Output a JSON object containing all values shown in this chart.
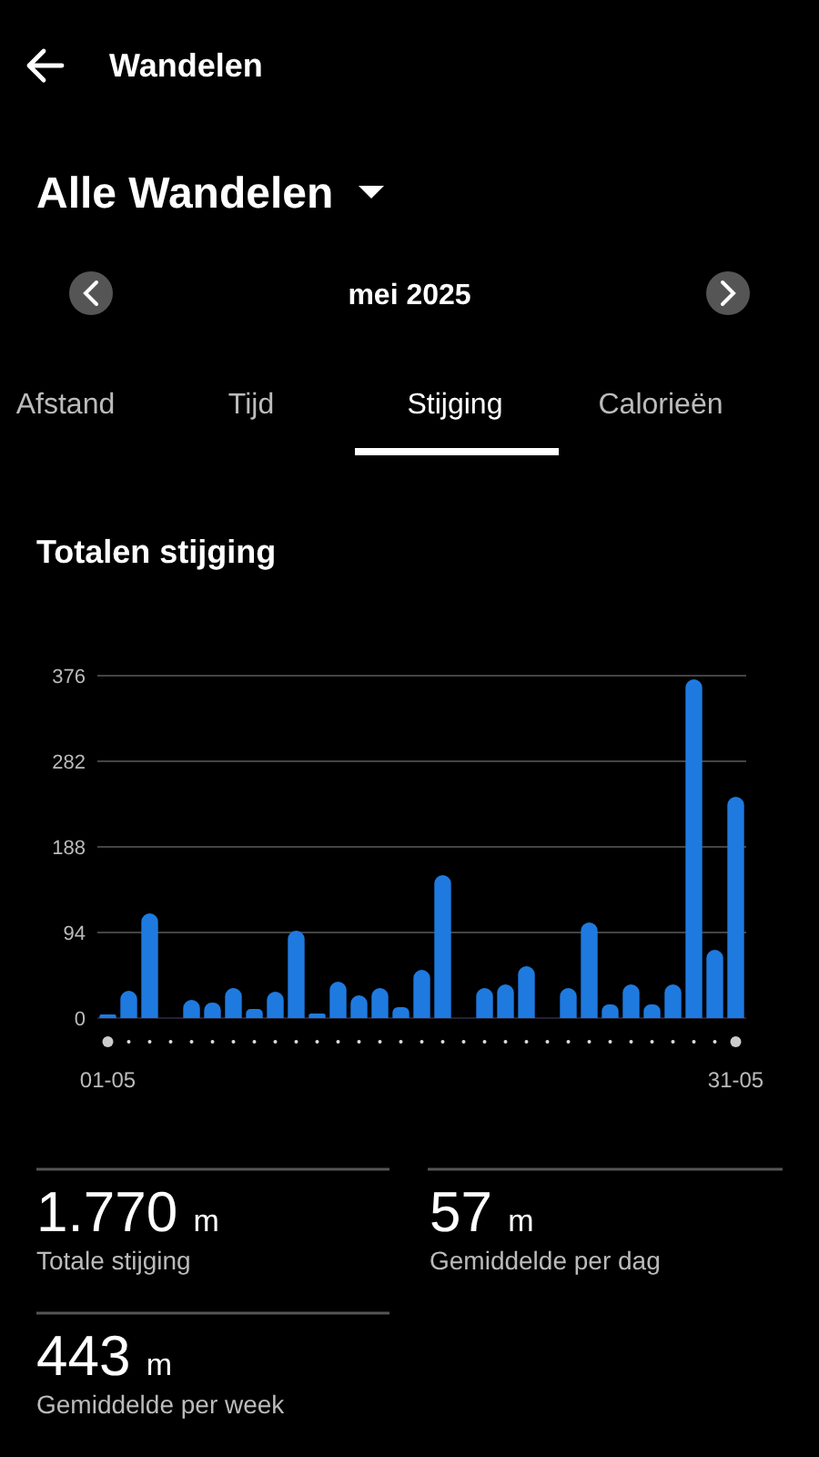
{
  "chart_data": {
    "type": "bar",
    "title": "Totalen stijging",
    "subtitle": "mei 2025",
    "annotations": [
      "Wandelen",
      "Alle Wandelen",
      "Afstand",
      "Tijd",
      "Stijging",
      "Calorieën",
      "1.770 m",
      "Totale stijging",
      "57 m",
      "Gemiddelde per dag",
      "443 m",
      "Gemiddelde per week"
    ],
    "categories": [
      "01-05",
      null,
      null,
      null,
      null,
      null,
      null,
      null,
      null,
      null,
      null,
      null,
      null,
      null,
      null,
      null,
      null,
      null,
      null,
      null,
      null,
      null,
      null,
      null,
      null,
      null,
      null,
      null,
      null,
      null,
      "31-05"
    ],
    "values": [
      4,
      30,
      115,
      0,
      20,
      17,
      33,
      10,
      29,
      96,
      5,
      40,
      25,
      33,
      12,
      53,
      157,
      0,
      33,
      37,
      57,
      0,
      33,
      105,
      15,
      37,
      15,
      37,
      372,
      75,
      243
    ],
    "color": "#1f7ae0",
    "ylim": [
      0,
      376
    ],
    "yticks": [
      0,
      94,
      188,
      282,
      376
    ],
    "grid": "y"
  }
}
